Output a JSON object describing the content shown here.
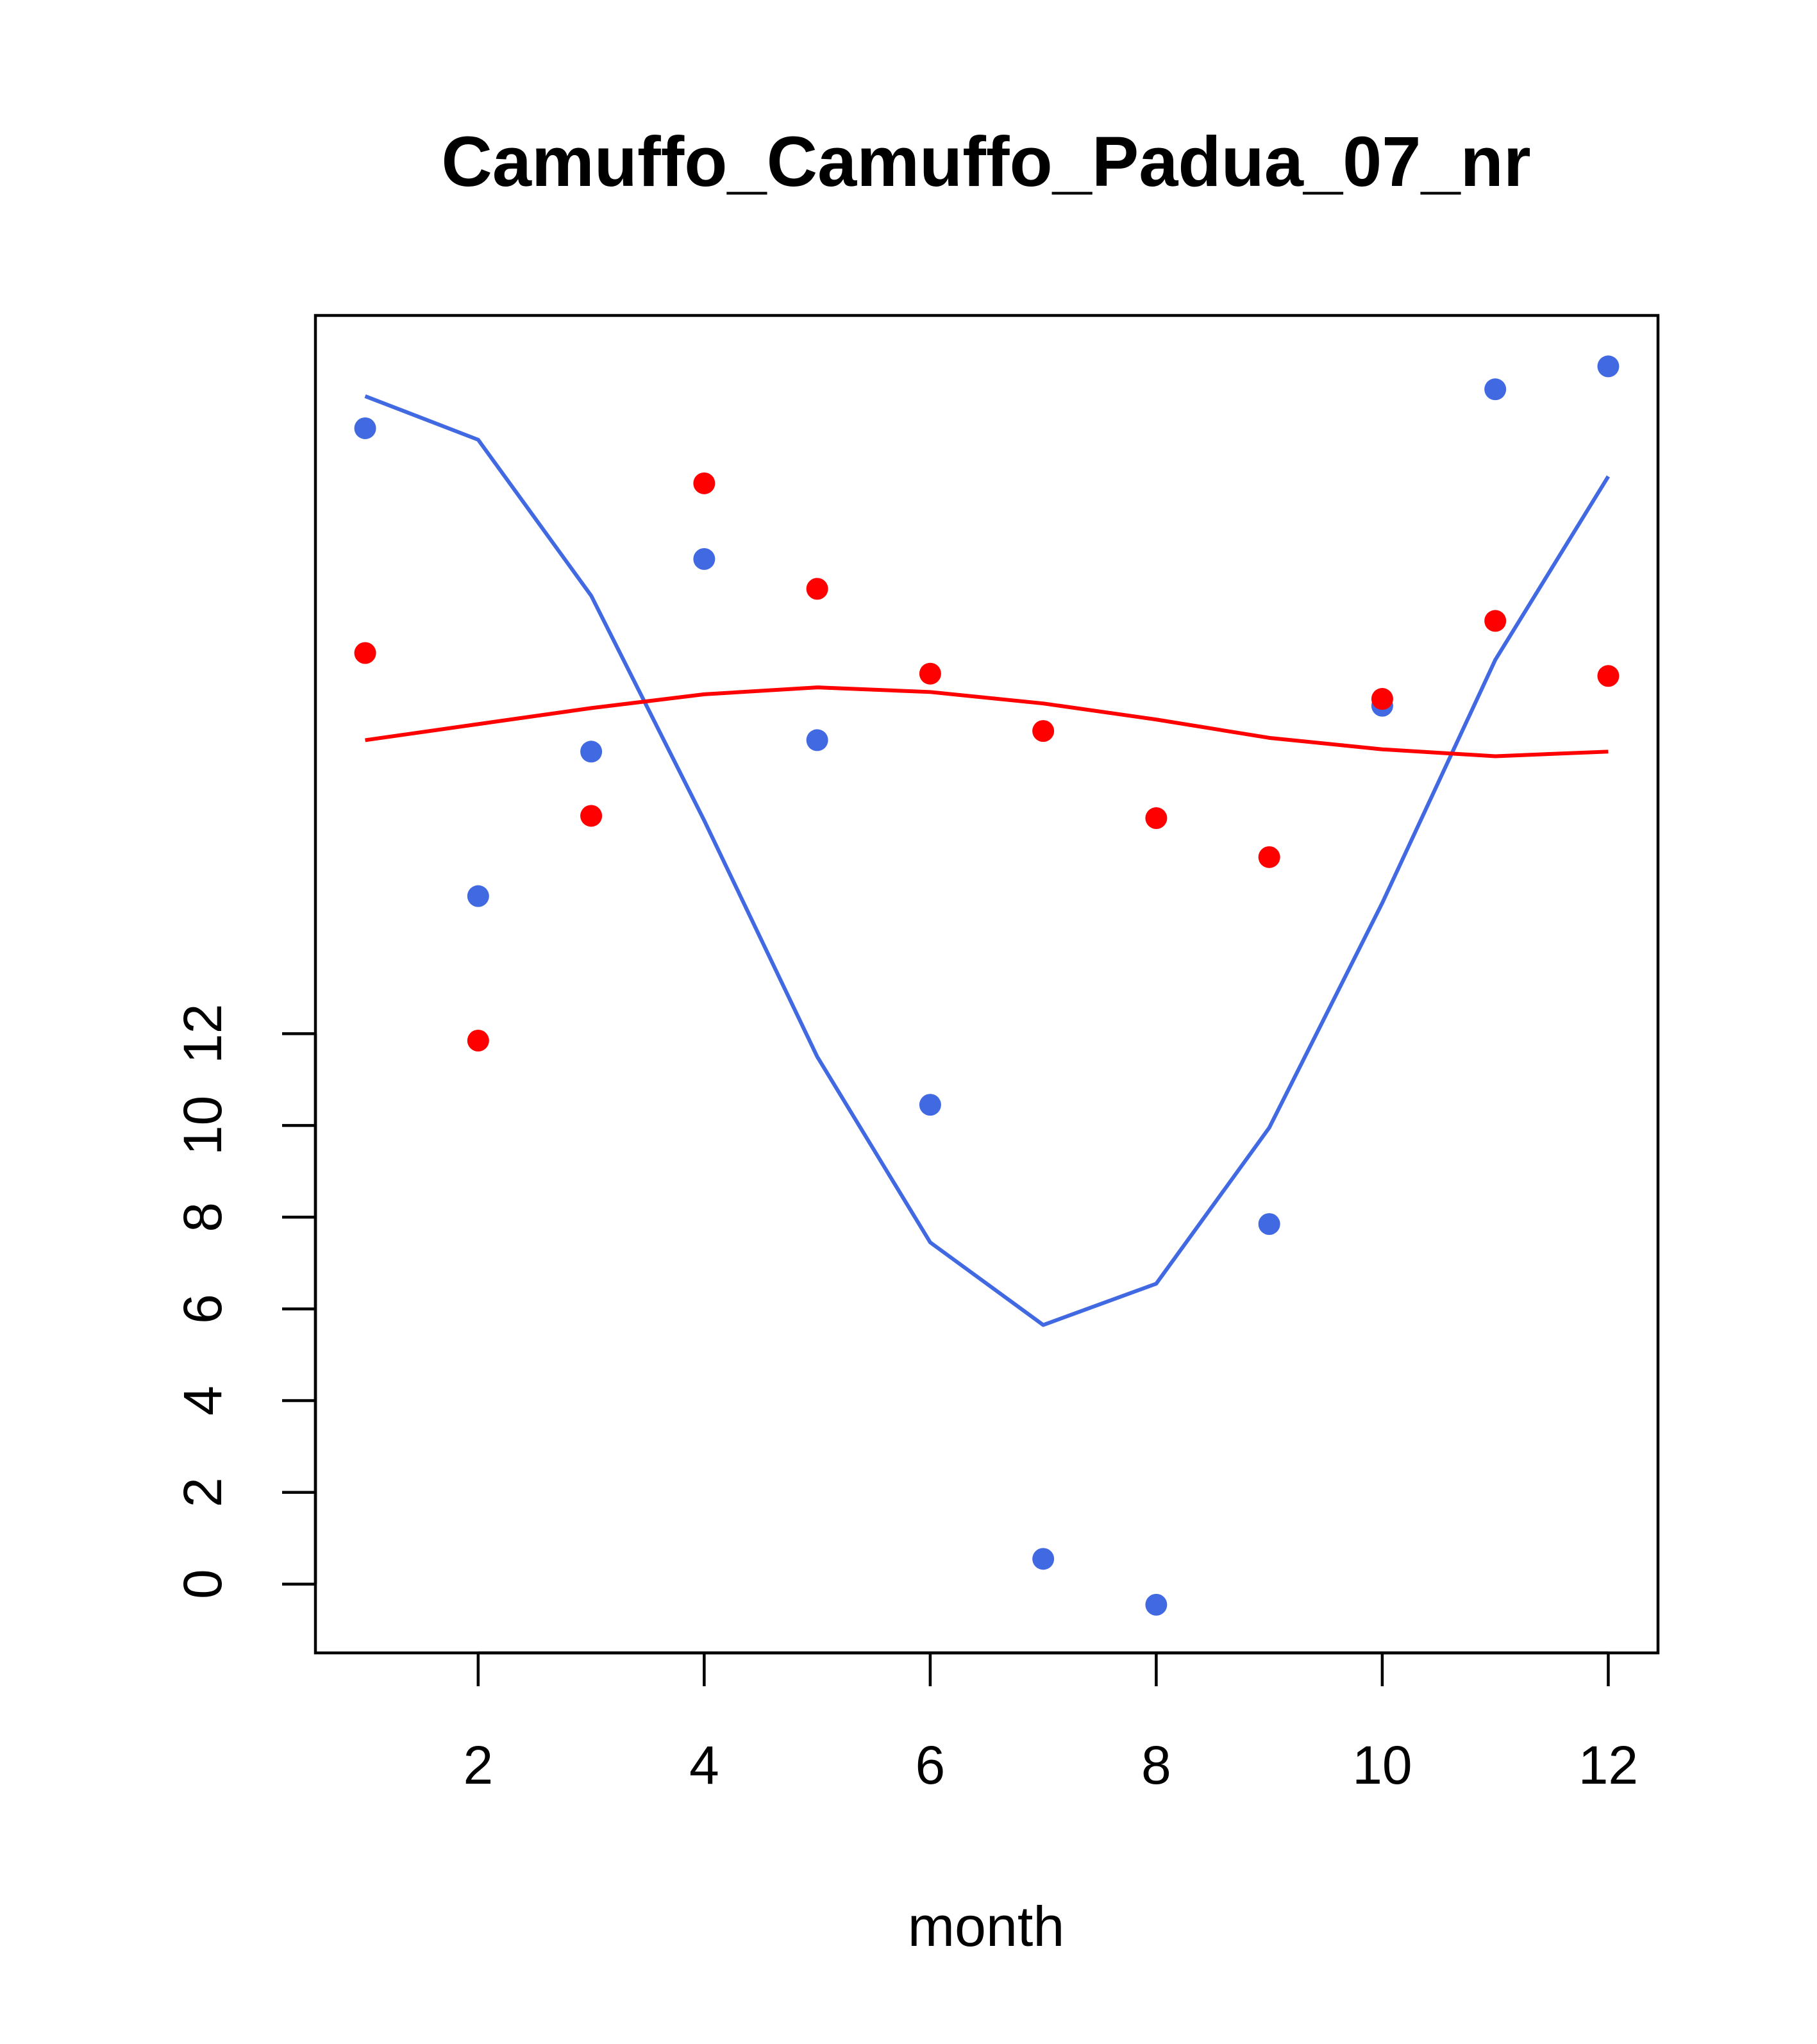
{
  "chart_data": {
    "type": "scatter",
    "title": "Camuffo_Camuffo_Padua_07_nr",
    "xlabel": "month",
    "ylabel": "",
    "xlim": [
      0.56,
      12.44
    ],
    "ylim": [
      -1.5,
      27.66
    ],
    "x": [
      1,
      2,
      3,
      4,
      5,
      6,
      7,
      8,
      9,
      10,
      11,
      12
    ],
    "x_ticks": [
      2,
      4,
      6,
      8,
      10,
      12
    ],
    "y_ticks": [
      0,
      2,
      4,
      6,
      8,
      10,
      12
    ],
    "series": [
      {
        "name": "blue points",
        "kind": "points",
        "color": "#4169E1",
        "values": [
          25.2,
          15.0,
          18.15,
          22.35,
          18.4,
          10.45,
          0.55,
          -0.45,
          7.85,
          19.15,
          26.05,
          26.55
        ]
      },
      {
        "name": "red points",
        "kind": "points",
        "color": "#FF0000",
        "values": [
          20.3,
          11.85,
          16.75,
          24.0,
          21.7,
          19.85,
          18.6,
          16.7,
          15.85,
          19.3,
          21.0,
          19.8
        ]
      },
      {
        "name": "blue line",
        "kind": "line",
        "color": "#4169E1",
        "values": [
          25.9,
          24.95,
          21.55,
          16.65,
          11.5,
          7.45,
          5.65,
          6.55,
          9.95,
          14.85,
          20.15,
          24.15
        ]
      },
      {
        "name": "red line",
        "kind": "line",
        "color": "#FF0000",
        "values": [
          18.4,
          18.75,
          19.1,
          19.4,
          19.55,
          19.45,
          19.2,
          18.85,
          18.45,
          18.2,
          18.05,
          18.15
        ]
      }
    ]
  }
}
